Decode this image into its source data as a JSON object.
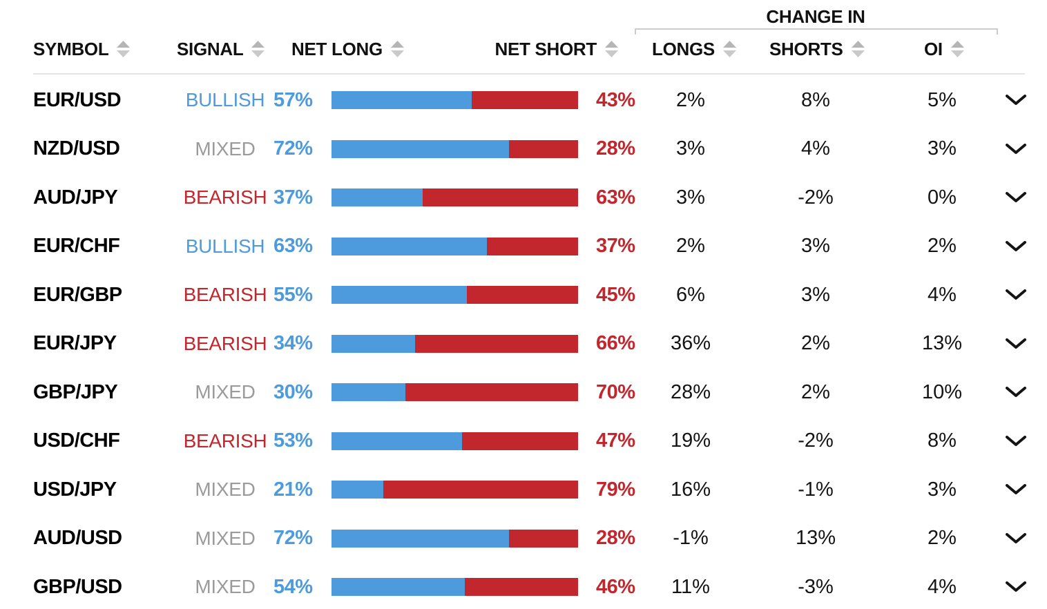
{
  "colors": {
    "blue": "#4D9BDC",
    "red": "#C1272D",
    "mixed_gray": "#9B9B9B",
    "text": "#111111",
    "sort_icon_up": "#B5B5B5",
    "sort_icon_down": "#C9C9C9",
    "divider": "#E4E4E4",
    "bracket": "#CCCCCC",
    "background": "#FFFFFF"
  },
  "icons": {
    "sort": "sort-up-down-icon",
    "expand": "chevron-down-icon"
  },
  "header": {
    "change_in_label": "CHANGE IN",
    "columns": {
      "symbol": "SYMBOL",
      "signal": "SIGNAL",
      "net_long": "NET LONG",
      "net_short": "NET SHORT",
      "longs": "LONGS",
      "shorts": "SHORTS",
      "oi": "OI"
    }
  },
  "table": {
    "rows": [
      {
        "symbol": "EUR/USD",
        "signal": "BULLISH",
        "net_long": "57%",
        "net_long_pct": 57,
        "net_short": "43%",
        "change_longs": "2%",
        "change_shorts": "8%",
        "change_oi": "5%"
      },
      {
        "symbol": "NZD/USD",
        "signal": "MIXED",
        "net_long": "72%",
        "net_long_pct": 72,
        "net_short": "28%",
        "change_longs": "3%",
        "change_shorts": "4%",
        "change_oi": "3%"
      },
      {
        "symbol": "AUD/JPY",
        "signal": "BEARISH",
        "net_long": "37%",
        "net_long_pct": 37,
        "net_short": "63%",
        "change_longs": "3%",
        "change_shorts": "-2%",
        "change_oi": "0%"
      },
      {
        "symbol": "EUR/CHF",
        "signal": "BULLISH",
        "net_long": "63%",
        "net_long_pct": 63,
        "net_short": "37%",
        "change_longs": "2%",
        "change_shorts": "3%",
        "change_oi": "2%"
      },
      {
        "symbol": "EUR/GBP",
        "signal": "BEARISH",
        "net_long": "55%",
        "net_long_pct": 55,
        "net_short": "45%",
        "change_longs": "6%",
        "change_shorts": "3%",
        "change_oi": "4%"
      },
      {
        "symbol": "EUR/JPY",
        "signal": "BEARISH",
        "net_long": "34%",
        "net_long_pct": 34,
        "net_short": "66%",
        "change_longs": "36%",
        "change_shorts": "2%",
        "change_oi": "13%"
      },
      {
        "symbol": "GBP/JPY",
        "signal": "MIXED",
        "net_long": "30%",
        "net_long_pct": 30,
        "net_short": "70%",
        "change_longs": "28%",
        "change_shorts": "2%",
        "change_oi": "10%"
      },
      {
        "symbol": "USD/CHF",
        "signal": "BEARISH",
        "net_long": "53%",
        "net_long_pct": 53,
        "net_short": "47%",
        "change_longs": "19%",
        "change_shorts": "-2%",
        "change_oi": "8%"
      },
      {
        "symbol": "USD/JPY",
        "signal": "MIXED",
        "net_long": "21%",
        "net_long_pct": 21,
        "net_short": "79%",
        "change_longs": "16%",
        "change_shorts": "-1%",
        "change_oi": "3%"
      },
      {
        "symbol": "AUD/USD",
        "signal": "MIXED",
        "net_long": "72%",
        "net_long_pct": 72,
        "net_short": "28%",
        "change_longs": "-1%",
        "change_shorts": "13%",
        "change_oi": "2%"
      },
      {
        "symbol": "GBP/USD",
        "signal": "MIXED",
        "net_long": "54%",
        "net_long_pct": 54,
        "net_short": "46%",
        "change_longs": "11%",
        "change_shorts": "-3%",
        "change_oi": "4%"
      }
    ]
  }
}
